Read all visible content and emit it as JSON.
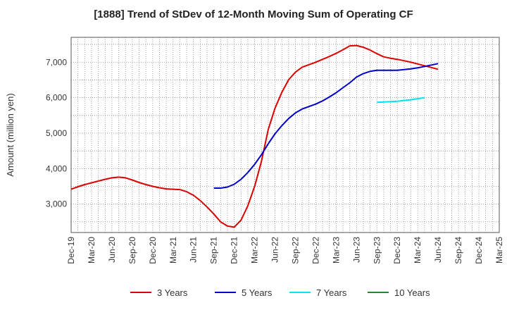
{
  "chart_data": {
    "type": "line",
    "title": "[1888]  Trend of StDev of 12-Month Moving Sum of Operating CF",
    "ylabel": "Amount (million yen)",
    "xlabel": "",
    "ylim": [
      2200,
      7700
    ],
    "y_ticks": [
      3000,
      4000,
      5000,
      6000,
      7000
    ],
    "y_tick_labels": [
      "3,000",
      "4,000",
      "5,000",
      "6,000",
      "7,000"
    ],
    "x_tick_labels": [
      "Dec-19",
      "Mar-20",
      "Jun-20",
      "Sep-20",
      "Dec-20",
      "Mar-21",
      "Jun-21",
      "Sep-21",
      "Dec-21",
      "Mar-22",
      "Jun-22",
      "Sep-22",
      "Dec-22",
      "Mar-23",
      "Jun-23",
      "Sep-23",
      "Dec-23",
      "Mar-24",
      "Jun-24",
      "Sep-24",
      "Dec-24",
      "Mar-25"
    ],
    "x_start": "Dec-19",
    "x_end": "Mar-25",
    "grid": true,
    "legend_position": "bottom",
    "series": [
      {
        "name": "3 Years",
        "color": "#dd0000",
        "start": "Dec-19",
        "values": [
          3420,
          3490,
          3550,
          3600,
          3650,
          3700,
          3740,
          3760,
          3740,
          3680,
          3610,
          3550,
          3500,
          3460,
          3430,
          3420,
          3410,
          3350,
          3250,
          3100,
          2920,
          2720,
          2500,
          2380,
          2350,
          2550,
          2950,
          3500,
          4200,
          5100,
          5700,
          6150,
          6500,
          6720,
          6860,
          6930,
          7000,
          7080,
          7160,
          7250,
          7350,
          7460,
          7470,
          7420,
          7340,
          7240,
          7150,
          7110,
          7080,
          7040,
          7000,
          6950,
          6900,
          6850,
          6800
        ]
      },
      {
        "name": "5 Years",
        "color": "#0000cc",
        "start": "Sep-21",
        "values": [
          3450,
          3450,
          3480,
          3560,
          3700,
          3890,
          4120,
          4390,
          4700,
          4980,
          5210,
          5410,
          5570,
          5680,
          5750,
          5820,
          5910,
          6020,
          6140,
          6280,
          6420,
          6580,
          6680,
          6740,
          6770,
          6770,
          6770,
          6770,
          6790,
          6810,
          6840,
          6880,
          6920,
          6960
        ]
      },
      {
        "name": "7 Years",
        "color": "#00e5ee",
        "start": "Sep-23",
        "values": [
          5870,
          5880,
          5890,
          5900,
          5920,
          5940,
          5970,
          6000
        ]
      },
      {
        "name": "10 Years",
        "color": "#228b22",
        "start": "Sep-23",
        "values": []
      }
    ]
  }
}
